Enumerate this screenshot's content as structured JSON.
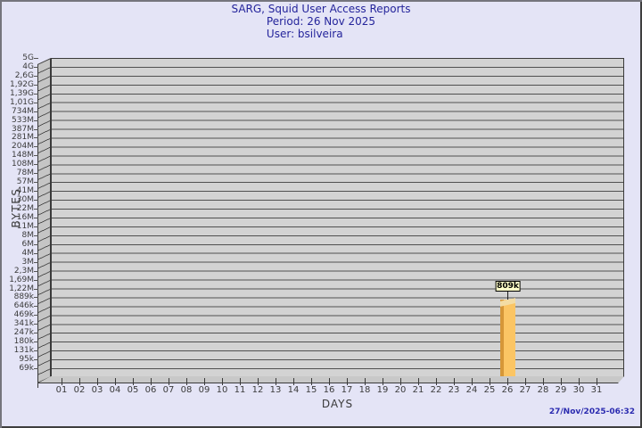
{
  "header": {
    "title": "SARG, Squid User Access Reports",
    "period": "Period: 26 Nov 2025",
    "user": "User: bsilveira"
  },
  "chart_data": {
    "type": "bar",
    "title": "SARG, Squid User Access Reports",
    "subtitle_lines": [
      "Period: 26 Nov 2025",
      "User: bsilveira"
    ],
    "xlabel": "DAYS",
    "ylabel": "BYTES",
    "yscale": "log",
    "grid": true,
    "ytick_labels": [
      "5G",
      "4G",
      "2,6G",
      "1,92G",
      "1,39G",
      "1,01G",
      "734M",
      "533M",
      "387M",
      "281M",
      "204M",
      "148M",
      "108M",
      "78M",
      "57M",
      "41M",
      "30M",
      "22M",
      "16M",
      "11M",
      "8M",
      "6M",
      "4M",
      "3M",
      "2,3M",
      "1,69M",
      "1,22M",
      "889k",
      "646k",
      "469k",
      "341k",
      "247k",
      "180k",
      "131k",
      "95k",
      "69k"
    ],
    "categories": [
      "01",
      "02",
      "03",
      "04",
      "05",
      "06",
      "07",
      "08",
      "09",
      "10",
      "11",
      "12",
      "13",
      "14",
      "15",
      "16",
      "17",
      "18",
      "19",
      "20",
      "21",
      "22",
      "23",
      "24",
      "25",
      "26",
      "27",
      "28",
      "29",
      "30",
      "31"
    ],
    "values": [
      0,
      0,
      0,
      0,
      0,
      0,
      0,
      0,
      0,
      0,
      0,
      0,
      0,
      0,
      0,
      0,
      0,
      0,
      0,
      0,
      0,
      0,
      0,
      0,
      0,
      809000,
      0,
      0,
      0,
      0,
      0
    ],
    "bars": [
      {
        "category": "26",
        "label": "809k",
        "value": 809000
      }
    ],
    "colors": {
      "bar_face": "#fbc564",
      "bar_side": "#d69738",
      "bar_top": "#f3dca4",
      "plot_bg": "#d3d3d3",
      "grid_line": "#505050",
      "title_text": "#24249b",
      "timestamp_text": "#2b2bb0",
      "value_box_bg": "#ffffc8",
      "page_bg": "#e4e4f6"
    }
  },
  "footer": {
    "timestamp": "27/Nov/2025-06:32"
  }
}
